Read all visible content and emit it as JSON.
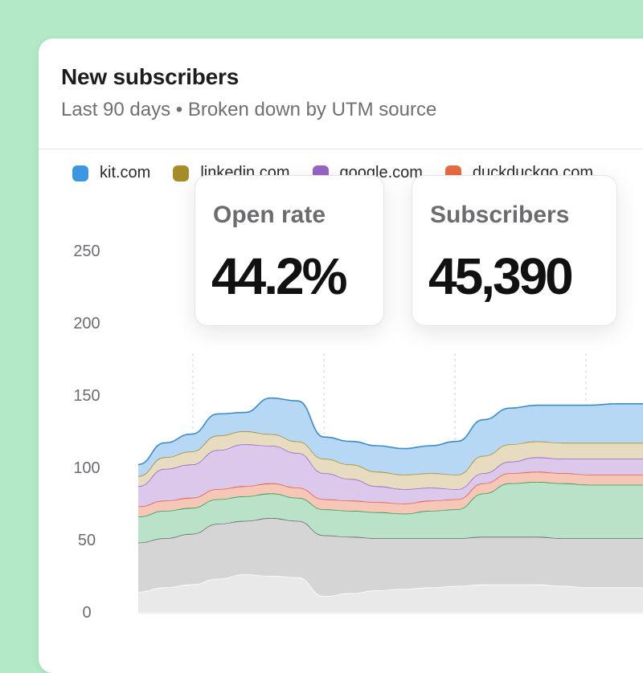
{
  "card": {
    "title": "New subscribers",
    "subtitle": "Last 90 days • Broken down by UTM source"
  },
  "stats": [
    {
      "label": "Open rate",
      "value": "44.2%"
    },
    {
      "label": "Subscribers",
      "value": "45,390"
    }
  ],
  "chart_data": {
    "type": "area",
    "stacked": true,
    "title": "New subscribers",
    "subtitle": "Last 90 days • Broken down by UTM source",
    "x": [
      0,
      1,
      2,
      3,
      4,
      5,
      6,
      7,
      8,
      9,
      10,
      11,
      12,
      13,
      14,
      15,
      16,
      17,
      18,
      19
    ],
    "ylim": [
      0,
      250
    ],
    "yticks": [
      0,
      50,
      100,
      150,
      200,
      250
    ],
    "grid": true,
    "legend_position": "top",
    "series": [
      {
        "name": "",
        "color": "#e9e9e9",
        "values": [
          14,
          17,
          19,
          23,
          26,
          25,
          24,
          11,
          13,
          15,
          16,
          17,
          18,
          19,
          19,
          19,
          18,
          17,
          17,
          17
        ]
      },
      {
        "name": "",
        "color": "#d5d5d5",
        "values": [
          34,
          34,
          35,
          38,
          37,
          40,
          39,
          42,
          39,
          36,
          35,
          34,
          33,
          33,
          33,
          33,
          33,
          34,
          34,
          34
        ]
      },
      {
        "name": "",
        "color": "#b9e2c8",
        "values": [
          18,
          19,
          18,
          17,
          17,
          17,
          16,
          18,
          18,
          18,
          17,
          19,
          20,
          30,
          37,
          38,
          38,
          37,
          37,
          37
        ]
      },
      {
        "name": "duckduckgo.com",
        "color": "#f6c7b6",
        "values": [
          7,
          7,
          7,
          7,
          7,
          7,
          7,
          7,
          7,
          7,
          7,
          7,
          7,
          7,
          7,
          7,
          7,
          7,
          7,
          7
        ]
      },
      {
        "name": "google.com",
        "color": "#dcc8ea",
        "values": [
          14,
          22,
          23,
          27,
          29,
          26,
          24,
          18,
          15,
          11,
          10,
          9,
          7,
          7,
          8,
          10,
          10,
          11,
          11,
          11
        ]
      },
      {
        "name": "linkedin.com",
        "color": "#e8dcc0",
        "values": [
          7,
          8,
          9,
          10,
          9,
          8,
          8,
          10,
          10,
          10,
          10,
          10,
          10,
          12,
          12,
          11,
          11,
          11,
          11,
          11
        ]
      },
      {
        "name": "kit.com",
        "color": "#b7d8f4",
        "values": [
          8,
          10,
          12,
          15,
          13,
          25,
          28,
          15,
          16,
          18,
          18,
          19,
          23,
          25,
          25,
          25,
          26,
          26,
          27,
          27
        ]
      }
    ]
  },
  "legend_colors": {
    "kit.com": "#3b97e0",
    "linkedin.com": "#a48d2a",
    "google.com": "#9a63c6",
    "duckduckgo.com": "#e66b43"
  },
  "line_colors": [
    "#ffffff",
    "#6c6c6c",
    "#3a9a56",
    "#e35f4b",
    "#9966c7",
    "#a48d2a",
    "#3b8ccd"
  ]
}
